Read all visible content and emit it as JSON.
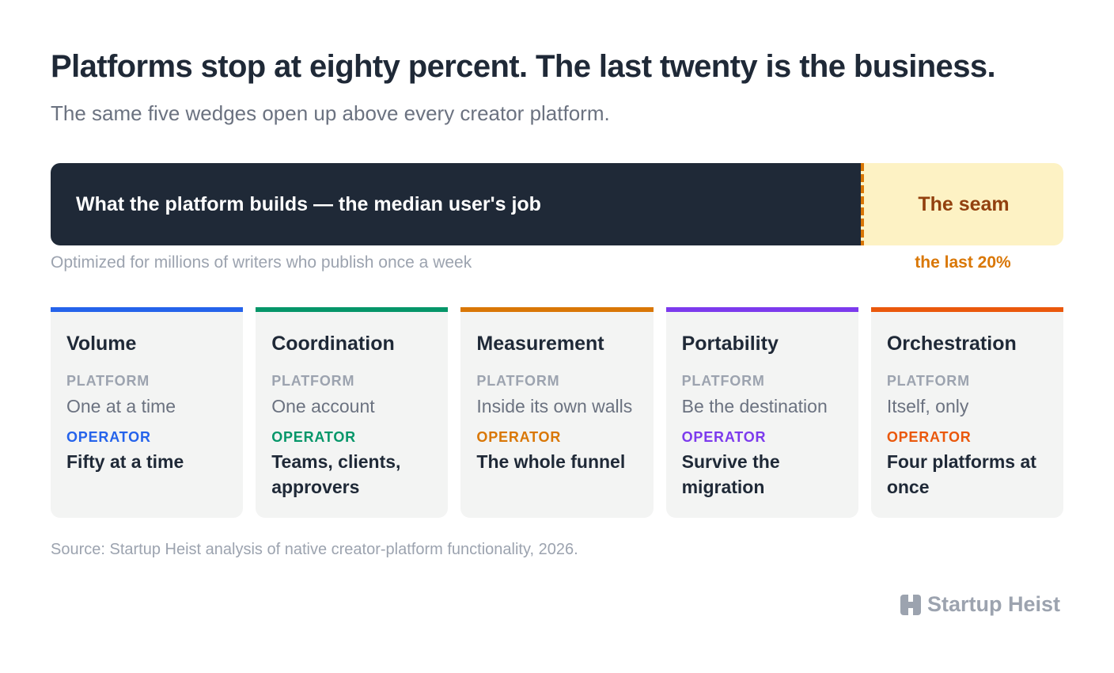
{
  "header": {
    "title": "Platforms stop at eighty percent. The last twenty is the business.",
    "subtitle": "The same five wedges open up above every creator platform."
  },
  "bar": {
    "platform_label": "What the platform builds — the median user's job",
    "seam_label": "The seam",
    "platform_caption": "Optimized for millions of writers who publish once a week",
    "seam_caption": "the last 20%",
    "platform_share_percent": 80,
    "seam_share_percent": 20
  },
  "labels": {
    "platform": "PLATFORM",
    "operator": "OPERATOR"
  },
  "cards": [
    {
      "title": "Volume",
      "platform": "One at a time",
      "operator": "Fifty at a time",
      "color": "#2563eb"
    },
    {
      "title": "Coordination",
      "platform": "One account",
      "operator": "Teams, clients, approvers",
      "color": "#059669"
    },
    {
      "title": "Measurement",
      "platform": "Inside its own walls",
      "operator": "The whole funnel",
      "color": "#d97706"
    },
    {
      "title": "Portability",
      "platform": "Be the destination",
      "operator": "Survive the migration",
      "color": "#7c3aed"
    },
    {
      "title": "Orchestration",
      "platform": "Itself, only",
      "operator": "Four platforms at once",
      "color": "#ea580c"
    }
  ],
  "footer": {
    "source": "Source: Startup Heist analysis of native creator-platform functionality, 2026.",
    "brand": "Startup Heist",
    "brand_icon": "h-logo-icon"
  }
}
